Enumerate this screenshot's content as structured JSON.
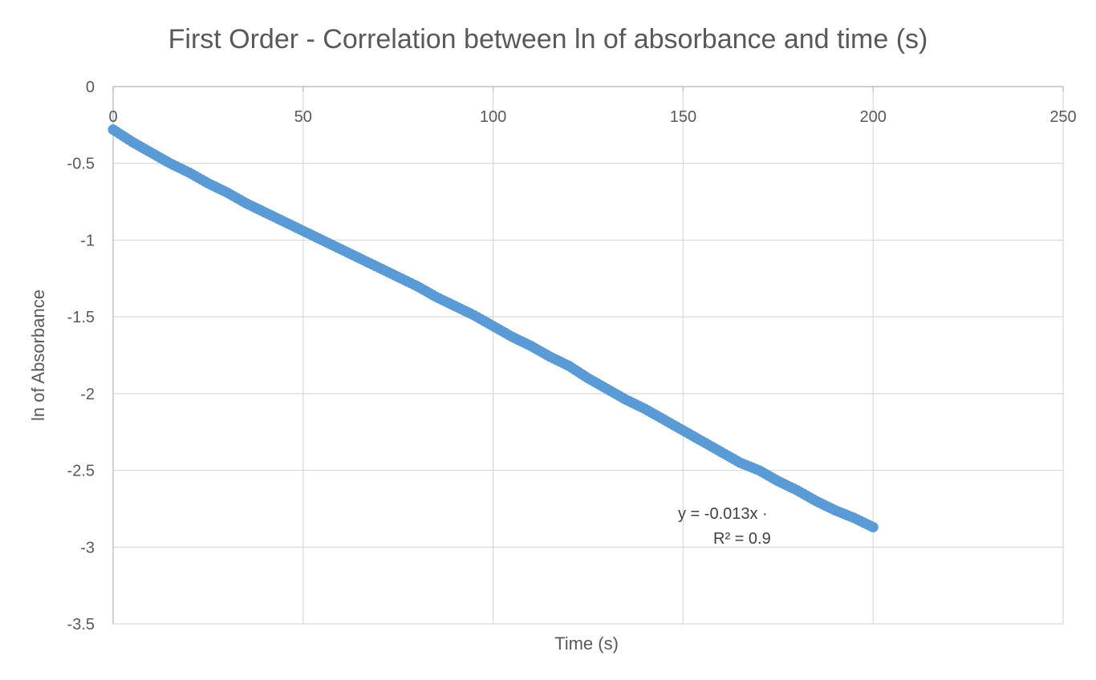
{
  "chart_data": {
    "type": "scatter",
    "title": "First Order - Correlation between ln of absorbance and time (s)",
    "xlabel": "Time (s)",
    "ylabel": "ln of Absorbance",
    "xlim": [
      0,
      250
    ],
    "ylim": [
      -3.5,
      0
    ],
    "x_ticks": [
      "0",
      "50",
      "100",
      "150",
      "200",
      "250"
    ],
    "y_ticks": [
      "0",
      "-0.5",
      "-1",
      "-1.5",
      "-2",
      "-2.5",
      "-3",
      "-3.5"
    ],
    "x_tick_values": [
      0,
      50,
      100,
      150,
      200,
      250
    ],
    "y_tick_values": [
      0,
      -0.5,
      -1,
      -1.5,
      -2,
      -2.5,
      -3,
      -3.5
    ],
    "grid": true,
    "legend": "none",
    "marker_color": "#5b9bd5",
    "series": [
      {
        "x": [
          0,
          5,
          10,
          15,
          20,
          25,
          30,
          35,
          40,
          45,
          50,
          55,
          60,
          65,
          70,
          75,
          80,
          85,
          90,
          95,
          100,
          105,
          110,
          115,
          120,
          125,
          130,
          135,
          140,
          145,
          150,
          155,
          160,
          165,
          170,
          175,
          180,
          185,
          190,
          195,
          200
        ],
        "y": [
          -0.28,
          -0.36,
          -0.43,
          -0.5,
          -0.56,
          -0.63,
          -0.69,
          -0.76,
          -0.82,
          -0.88,
          -0.94,
          -1.0,
          -1.06,
          -1.12,
          -1.18,
          -1.24,
          -1.3,
          -1.37,
          -1.43,
          -1.49,
          -1.56,
          -1.63,
          -1.69,
          -1.76,
          -1.82,
          -1.9,
          -1.97,
          -2.04,
          -2.1,
          -2.17,
          -2.24,
          -2.31,
          -2.38,
          -2.45,
          -2.5,
          -2.57,
          -2.63,
          -2.7,
          -2.76,
          -2.81,
          -2.87
        ]
      }
    ],
    "trendline_label": {
      "equation": "y = -0.013x ·",
      "r2": "R² = 0.9"
    }
  }
}
